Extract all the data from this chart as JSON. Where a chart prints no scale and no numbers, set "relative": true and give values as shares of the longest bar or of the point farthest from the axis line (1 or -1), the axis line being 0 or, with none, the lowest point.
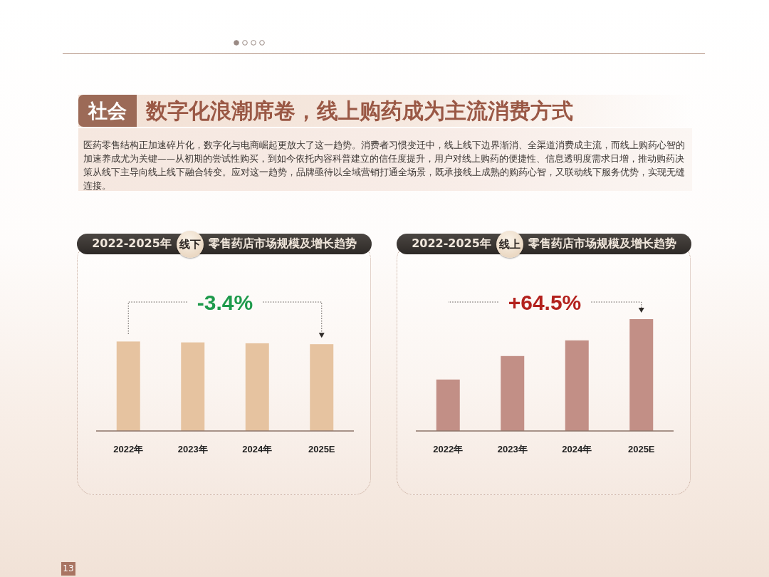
{
  "chart_data": [
    {
      "type": "other",
      "title": "社会",
      "subtitle": "数字化浪潮席卷，线上购药成为主流消费方式",
      "annotations": [
        "医药零售结构正加速碎片化，数字化与电商崛起更放大了这一趋势。消费者习惯变迁中，线上线下边界渐消、全渠道消费成主流，而线上购药心智的加速养成尤为关键——从初期的尝试性购买，到如今依托内容科普建立的信任度提升，用户对线上购药的便捷性、信息透明度需求日增，推动购药决策从线下主导向线上线下融合转变。应对这一趋势，品牌亟待以全域营销打通全场景，既承接线上成熟的购药心智，又联动线下服务优势，实现无缝连接。",
        "13"
      ]
    },
    {
      "type": "bar",
      "title": "2022-2025年**线下**零售药店市场规模及增长趋势",
      "categories": [
        "2022年",
        "2023年",
        "2024年",
        "2025E"
      ],
      "values": [
        1,
        0.99,
        0.98,
        0.97
      ],
      "relative": true,
      "color": "#e6c3a0",
      "annotations": [
        "-3.4%"
      ]
    },
    {
      "type": "bar",
      "title": "2022-2025年**线上**零售药店市场规模及增长趋势",
      "categories": [
        "2022年",
        "2023年",
        "2024年",
        "2025E"
      ],
      "values": [
        0.46,
        0.67,
        0.81,
        1
      ],
      "relative": true,
      "color": "#c28f86",
      "annotations": [
        "+64.5%"
      ]
    }
  ]
}
